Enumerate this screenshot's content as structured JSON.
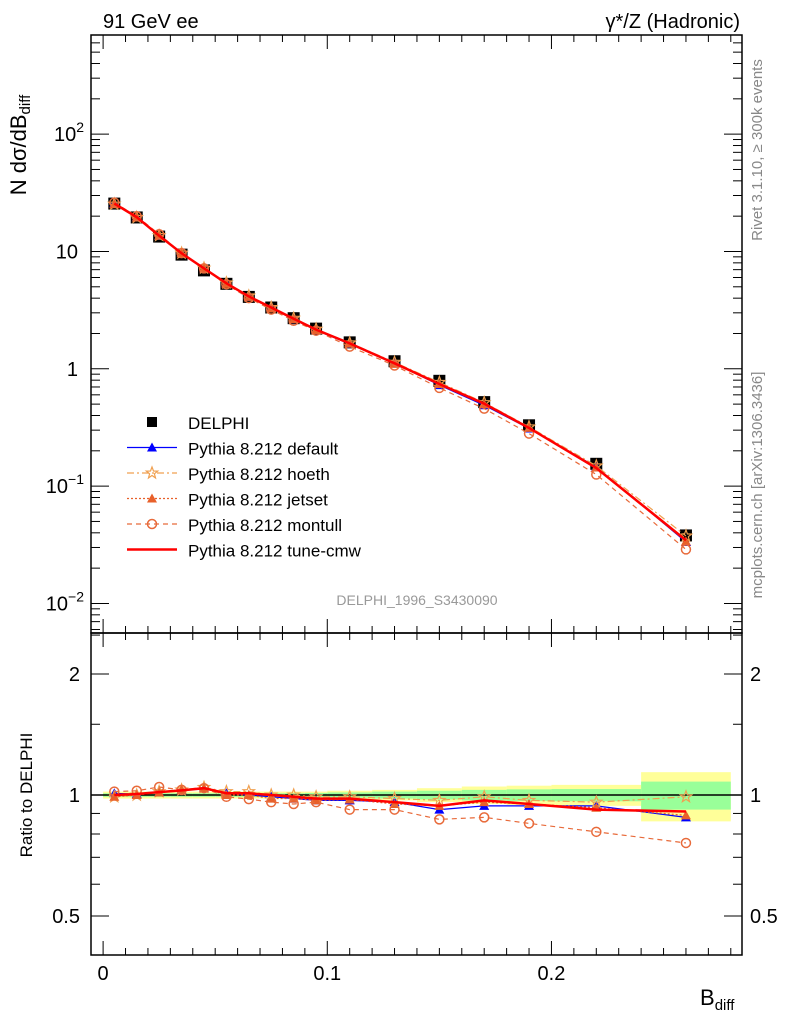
{
  "chart_data": {
    "type": "line",
    "title_left": "91 GeV ee",
    "title_right": "γ*/Z (Hadronic)",
    "ylabel": "N dσ/dB",
    "ylabel_sub": "diff",
    "xlabel": "B",
    "xlabel_sub": "diff",
    "ratio_ylabel": "Ratio to DELPHI",
    "side_text_top": "Rivet 3.1.10, ≥ 300k events",
    "side_text_bottom": "mcplots.cern.ch [arXiv:1306.3436]",
    "analysis_label": "DELPHI_1996_S3430090",
    "xlim": [
      -0.0054,
      0.285
    ],
    "ylim": [
      0.0056,
      700
    ],
    "yscale": "log",
    "ratio_ylim": [
      0.4,
      2.53
    ],
    "ratio_yscale": "log",
    "x_ticks": [
      {
        "v": 0,
        "label": "0"
      },
      {
        "v": 0.1,
        "label": "0.1"
      },
      {
        "v": 0.2,
        "label": "0.2"
      }
    ],
    "y_ticks": [
      {
        "v": 0.01,
        "base": "10",
        "exp": "−2"
      },
      {
        "v": 0.1,
        "base": "10",
        "exp": "−1"
      },
      {
        "v": 1,
        "base": "1",
        "exp": ""
      },
      {
        "v": 10,
        "base": "10",
        "exp": ""
      },
      {
        "v": 100,
        "base": "10",
        "exp": "2"
      }
    ],
    "ratio_ticks": [
      {
        "v": 0.5,
        "label": "0.5"
      },
      {
        "v": 1,
        "label": "1"
      },
      {
        "v": 2,
        "label": "2"
      }
    ],
    "x": [
      0.005,
      0.015,
      0.025,
      0.035,
      0.045,
      0.055,
      0.065,
      0.075,
      0.085,
      0.095,
      0.11,
      0.13,
      0.15,
      0.17,
      0.19,
      0.22,
      0.26
    ],
    "bin_edges": [
      0,
      0.01,
      0.02,
      0.03,
      0.04,
      0.05,
      0.06,
      0.07,
      0.08,
      0.09,
      0.1,
      0.12,
      0.14,
      0.16,
      0.18,
      0.2,
      0.24,
      0.28
    ],
    "data": {
      "name": "DELPHI",
      "values": [
        25.6,
        19.5,
        13.4,
        9.4,
        6.9,
        5.3,
        4.1,
        3.33,
        2.7,
        2.2,
        1.68,
        1.16,
        0.79,
        0.52,
        0.33,
        0.155,
        0.038
      ]
    },
    "band_total": [
      0.02,
      0.02,
      0.02,
      0.02,
      0.02,
      0.02,
      0.02,
      0.02,
      0.02,
      0.02,
      0.025,
      0.03,
      0.04,
      0.05,
      0.055,
      0.06,
      0.14
    ],
    "band_stat": [
      0.01,
      0.01,
      0.01,
      0.01,
      0.01,
      0.01,
      0.01,
      0.01,
      0.01,
      0.012,
      0.015,
      0.02,
      0.025,
      0.03,
      0.033,
      0.035,
      0.08
    ],
    "series": [
      {
        "name": "Pythia 8.212 default",
        "color": "#0000ff",
        "dash": "",
        "marker": "triangle",
        "ratio": [
          1.01,
          1.005,
          1.015,
          1.03,
          1.04,
          1.01,
          1.0,
          0.99,
          0.98,
          0.97,
          0.97,
          0.96,
          0.92,
          0.94,
          0.94,
          0.94,
          0.88
        ]
      },
      {
        "name": "Pythia 8.212 hoeth",
        "color": "#f0a050",
        "dash": "7,3,2,3",
        "marker": "star",
        "ratio": [
          0.99,
          1.0,
          1.02,
          1.03,
          1.045,
          1.02,
          1.02,
          1.0,
          1.0,
          0.99,
          0.99,
          0.98,
          0.97,
          0.99,
          0.97,
          0.96,
          0.99
        ]
      },
      {
        "name": "Pythia 8.212 jetset",
        "color": "#e8602a",
        "dash": "2,2",
        "marker": "triangle",
        "ratio": [
          0.99,
          1.0,
          1.015,
          1.03,
          1.04,
          1.0,
          1.0,
          0.98,
          0.98,
          0.97,
          0.975,
          0.95,
          0.94,
          0.96,
          0.95,
          0.93,
          0.89
        ]
      },
      {
        "name": "Pythia 8.212 montull",
        "color": "#e86a3a",
        "dash": "5,4",
        "marker": "circle",
        "ratio": [
          1.02,
          1.025,
          1.047,
          1.03,
          1.04,
          0.99,
          0.977,
          0.96,
          0.95,
          0.96,
          0.92,
          0.92,
          0.87,
          0.88,
          0.85,
          0.81,
          0.76
        ]
      },
      {
        "name": "Pythia 8.212 tune-cmw",
        "color": "#ff0000",
        "dash": "",
        "marker": "none",
        "ratio": [
          1.0,
          1.006,
          1.017,
          1.027,
          1.04,
          1.01,
          1.01,
          1.0,
          0.99,
          0.98,
          0.98,
          0.96,
          0.94,
          0.97,
          0.95,
          0.92,
          0.91
        ]
      }
    ],
    "legend_position": "lower-left"
  }
}
